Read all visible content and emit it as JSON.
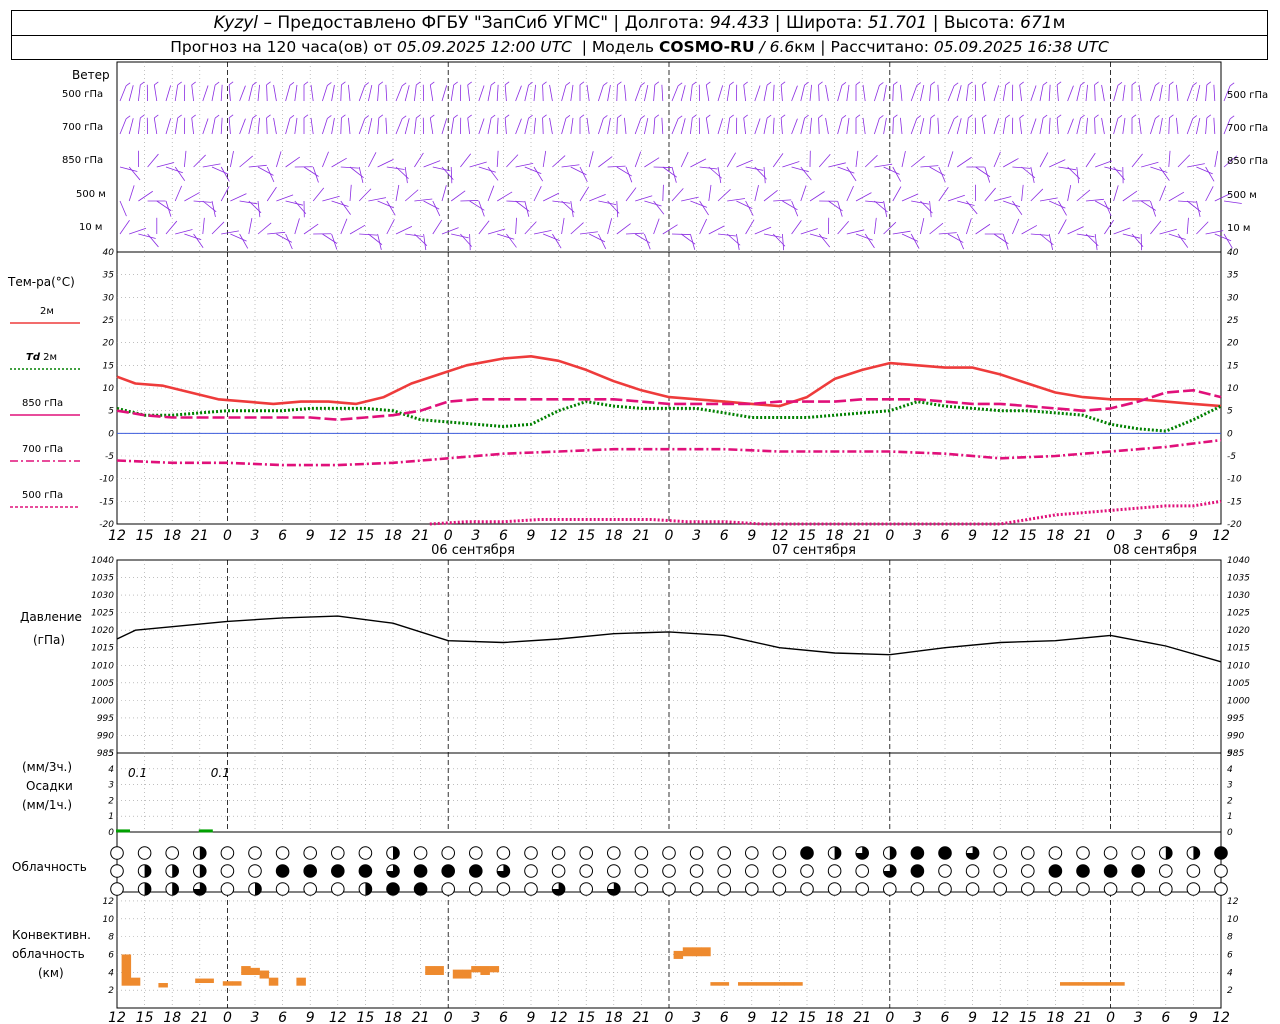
{
  "header": {
    "station": "Kyzyl",
    "provided_by": "– Предоставлено ФГБУ \"ЗапСиб УГМС\"",
    "lon_label": "Долгота:",
    "lon_value": "94.433",
    "lat_label": "Широта:",
    "lat_value": "51.701",
    "alt_label": "Высота:",
    "alt_value": "671",
    "alt_unit": "м",
    "forecast_label": "Прогноз на 120 часа(ов) от",
    "forecast_start": "05.09.2025 12:00 UTC",
    "model_label": "Модель",
    "model_name": "COSMO-RU",
    "model_res": "/ 6.6",
    "model_res_unit": "км",
    "calc_label": "Рассчитано:",
    "calc_time": "05.09.2025 16:38 UTC"
  },
  "wind_panel": {
    "title": "Ветер",
    "levels": [
      "500 гПа",
      "700 гПа",
      "850 гПа",
      "500 м",
      "10 м"
    ],
    "color": "#8a2be2"
  },
  "temp_panel": {
    "title": "Тем-ра(°С)",
    "legend": [
      {
        "label": "2м",
        "color": "#ee3b3b"
      },
      {
        "label_it": "Td",
        "label": "2м",
        "color": "#008000"
      },
      {
        "label": "850 гПа",
        "color": "#e0107a"
      },
      {
        "label": "700 гПа",
        "color": "#e0107a"
      },
      {
        "label": "500 гПа",
        "color": "#e0107a"
      }
    ],
    "yticks": [
      "40",
      "35",
      "30",
      "25",
      "20",
      "15",
      "10",
      "5",
      "0",
      "-5",
      "-10",
      "-15",
      "-20"
    ]
  },
  "pressure_panel": {
    "title": "Давление",
    "unit": "(гПа)",
    "yticks": [
      "1040",
      "1035",
      "1030",
      "1025",
      "1020",
      "1015",
      "1010",
      "1005",
      "1000",
      "995",
      "990",
      "985"
    ]
  },
  "precip_panel": {
    "unit_top": "(мм/3ч.)",
    "title": "Осадки",
    "unit_bottom": "(мм/1ч.)",
    "yticks": [
      "5",
      "4",
      "3",
      "2",
      "1",
      "0"
    ],
    "annotations": [
      "0.1",
      "0.1"
    ]
  },
  "cloud_panel": {
    "title": "Облачность"
  },
  "conv_panel": {
    "title1": "Конвективн.",
    "title2": "облачность",
    "unit": "(км)",
    "yticks": [
      "12",
      "10",
      "8",
      "6",
      "4",
      "2"
    ]
  },
  "x_axis": {
    "hour_labels": [
      "12",
      "15",
      "18",
      "21",
      "0",
      "3",
      "6",
      "9",
      "12",
      "15",
      "18",
      "21",
      "0",
      "3",
      "6",
      "9",
      "12",
      "15",
      "18",
      "21",
      "0",
      "3",
      "6",
      "9",
      "12",
      "15",
      "18"
    ],
    "date_labels": [
      "06 сентября",
      "07 сентября",
      "08 сентября"
    ]
  },
  "chart_data": [
    {
      "type": "line",
      "title": "Тем-ра(°С)",
      "x_unit": "hours from 05.09.2025 12:00 UTC",
      "ylim": [
        -20,
        40
      ],
      "series": [
        {
          "name": "2м",
          "color": "#ee3b3b",
          "style": "solid",
          "x": [
            0,
            2,
            5,
            8,
            11,
            14,
            17,
            20,
            23,
            26,
            29,
            32,
            35,
            38,
            42,
            45,
            48,
            51,
            54,
            57,
            60,
            63,
            66,
            69,
            72,
            75,
            78,
            81,
            84,
            87,
            90,
            93,
            96,
            99,
            102,
            105,
            108,
            111,
            114,
            117,
            120
          ],
          "y": [
            12.5,
            11,
            10.5,
            9,
            7.5,
            7,
            6.5,
            7,
            7,
            6.5,
            8,
            11,
            13,
            15,
            16.5,
            17,
            16,
            14,
            11.5,
            9.5,
            8,
            7.5,
            7,
            6.5,
            6,
            8,
            12,
            14,
            15.5,
            15,
            14.5,
            14.5,
            13,
            11,
            9,
            8,
            7.5,
            7.5,
            7,
            6.5,
            6
          ]
        },
        {
          "name": "Td 2м",
          "color": "#008000",
          "style": "dotted",
          "x": [
            0,
            3,
            6,
            9,
            12,
            15,
            18,
            21,
            24,
            27,
            30,
            33,
            36,
            39,
            42,
            45,
            48,
            51,
            54,
            57,
            60,
            63,
            66,
            69,
            72,
            75,
            78,
            81,
            84,
            87,
            90,
            93,
            96,
            99,
            102,
            105,
            108,
            111,
            114,
            117,
            120
          ],
          "y": [
            5.5,
            4,
            4,
            4.5,
            5,
            5,
            5,
            5.5,
            5.5,
            5.5,
            5,
            3,
            2.5,
            2,
            1.5,
            2,
            5,
            7,
            6,
            5.5,
            5.5,
            5.5,
            4.5,
            3.5,
            3.5,
            3.5,
            4,
            4.5,
            5,
            7,
            6,
            5.5,
            5,
            5,
            4.5,
            4,
            2,
            1,
            0.5,
            3,
            6
          ]
        },
        {
          "name": "850 гПа",
          "color": "#e0107a",
          "style": "longdash",
          "x": [
            0,
            3,
            6,
            9,
            12,
            15,
            18,
            21,
            24,
            27,
            30,
            33,
            36,
            39,
            42,
            45,
            48,
            51,
            54,
            57,
            60,
            63,
            66,
            69,
            72,
            75,
            78,
            81,
            84,
            87,
            90,
            93,
            96,
            99,
            102,
            105,
            108,
            111,
            114,
            117,
            120
          ],
          "y": [
            5,
            4,
            3.5,
            3.5,
            3.5,
            3.5,
            3.5,
            3.5,
            3,
            3.5,
            4,
            5,
            7,
            7.5,
            7.5,
            7.5,
            7.5,
            7.5,
            7.5,
            7,
            6.5,
            6.5,
            6.5,
            6.5,
            7,
            7,
            7,
            7.5,
            7.5,
            7.5,
            7,
            6.5,
            6.5,
            6,
            5.5,
            5,
            5.5,
            7,
            9,
            9.5,
            8
          ]
        },
        {
          "name": "700 гПа",
          "color": "#e0107a",
          "style": "dashdot",
          "x": [
            0,
            6,
            12,
            18,
            24,
            30,
            36,
            42,
            48,
            54,
            60,
            66,
            72,
            78,
            84,
            90,
            96,
            102,
            108,
            114,
            120
          ],
          "y": [
            -6,
            -6.5,
            -6.5,
            -7,
            -7,
            -6.5,
            -5.5,
            -4.5,
            -4,
            -3.5,
            -3.5,
            -3.5,
            -4,
            -4,
            -4,
            -4.5,
            -5.5,
            -5,
            -4,
            -3,
            -1.5
          ]
        },
        {
          "name": "500 гПа",
          "color": "#e0107a",
          "style": "dotted",
          "x": [
            34,
            38,
            42,
            46,
            50,
            54,
            58,
            62,
            66,
            70,
            74,
            78,
            96,
            99,
            102,
            105,
            108,
            111,
            114,
            117,
            120
          ],
          "y": [
            -20,
            -19.5,
            -19.5,
            -19,
            -19,
            -19,
            -19,
            -19.5,
            -19.5,
            -20,
            -20,
            -20,
            -20,
            -19,
            -18,
            -17.5,
            -17,
            -16.5,
            -16,
            -16,
            -15
          ]
        }
      ]
    },
    {
      "type": "line",
      "title": "Давление",
      "ylim": [
        985,
        1040
      ],
      "series": [
        {
          "name": "Давление",
          "color": "#000000",
          "x": [
            0,
            2,
            6,
            12,
            18,
            24,
            30,
            36,
            42,
            48,
            54,
            60,
            66,
            72,
            78,
            84,
            90,
            96,
            102,
            108,
            114,
            120
          ],
          "y": [
            1017.5,
            1020,
            1021,
            1022.5,
            1023.5,
            1024,
            1022,
            1017,
            1016.5,
            1017.5,
            1019,
            1019.5,
            1018.5,
            1015,
            1013.5,
            1013,
            1015,
            1016.5,
            1017,
            1018.5,
            1015.5,
            1011
          ]
        }
      ]
    },
    {
      "type": "bar",
      "title": "Осадки",
      "ylim": [
        0,
        5
      ],
      "series": [
        {
          "name": "Осадки",
          "color": "#00a000",
          "x": [
            0,
            9
          ],
          "y": [
            0.1,
            0.1
          ]
        }
      ]
    },
    {
      "type": "bar",
      "title": "Конвективн. облачность",
      "ylim": [
        0,
        13
      ],
      "series": [
        {
          "name": "base_top",
          "color": "#ee8a2e",
          "x": [
            1,
            2,
            5,
            9,
            10,
            12,
            13,
            14,
            15,
            16,
            17,
            20,
            34,
            35,
            37,
            38,
            39,
            40,
            41,
            61,
            62,
            63,
            64,
            65,
            66,
            68,
            69,
            70,
            71,
            72,
            73,
            74,
            103,
            104,
            105,
            106,
            107,
            108,
            109
          ],
          "base": [
            2.5,
            2.5,
            2.3,
            2.8,
            2.8,
            2.5,
            2.5,
            3.7,
            3.7,
            3.3,
            2.5,
            2.5,
            3.7,
            3.7,
            3.3,
            3.3,
            4,
            3.7,
            4,
            5.5,
            5.8,
            5.8,
            5.8,
            2.5,
            2.5,
            2.5,
            2.5,
            2.5,
            2.5,
            2.5,
            2.5,
            2.5,
            2.5,
            2.5,
            2.5,
            2.5,
            2.5,
            2.5,
            2.5
          ],
          "top": [
            6,
            3.4,
            2.8,
            3.3,
            3.3,
            3,
            3,
            4.7,
            4.5,
            4.2,
            3.4,
            3.4,
            4.7,
            4.7,
            4.3,
            4.3,
            4.7,
            4.7,
            4.7,
            6.4,
            6.8,
            6.8,
            6.8,
            2.9,
            2.9,
            2.9,
            2.9,
            2.9,
            2.9,
            2.9,
            2.9,
            2.9,
            2.9,
            2.9,
            2.9,
            2.9,
            2.9,
            2.9,
            2.9
          ]
        }
      ]
    }
  ]
}
